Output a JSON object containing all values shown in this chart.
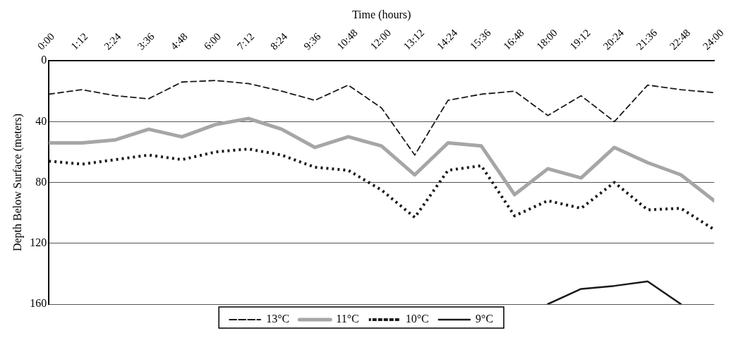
{
  "chart_data": {
    "type": "line",
    "xlabel": "Time (hours)",
    "ylabel": "Depth Below Surface (meters)",
    "x": [
      0,
      1.2,
      2.4,
      3.6,
      4.8,
      6,
      7.2,
      8.4,
      9.6,
      10.8,
      12,
      13.2,
      14.4,
      15.6,
      16.8,
      18,
      19.2,
      20.4,
      21.6,
      22.8,
      24
    ],
    "xlim": [
      0,
      24
    ],
    "xticks": [
      {
        "value": 0,
        "label": "0:00"
      },
      {
        "value": 1.2,
        "label": "1:12"
      },
      {
        "value": 2.4,
        "label": "2:24"
      },
      {
        "value": 3.6,
        "label": "3:36"
      },
      {
        "value": 4.8,
        "label": "4:48"
      },
      {
        "value": 6,
        "label": "6:00"
      },
      {
        "value": 7.2,
        "label": "7:12"
      },
      {
        "value": 8.4,
        "label": "8:24"
      },
      {
        "value": 9.6,
        "label": "9:36"
      },
      {
        "value": 10.8,
        "label": "10:48"
      },
      {
        "value": 12,
        "label": "12:00"
      },
      {
        "value": 13.2,
        "label": "13:12"
      },
      {
        "value": 14.4,
        "label": "14:24"
      },
      {
        "value": 15.6,
        "label": "15:36"
      },
      {
        "value": 16.8,
        "label": "16:48"
      },
      {
        "value": 18,
        "label": "18:00"
      },
      {
        "value": 19.2,
        "label": "19:12"
      },
      {
        "value": 20.4,
        "label": "20:24"
      },
      {
        "value": 21.6,
        "label": "21:36"
      },
      {
        "value": 22.8,
        "label": "22:48"
      },
      {
        "value": 24,
        "label": "24:00"
      }
    ],
    "ylim": [
      160,
      0
    ],
    "yticks": [
      0,
      40,
      80,
      120,
      160
    ],
    "grid": "y",
    "legend": "bottom",
    "marker": "none",
    "series": [
      {
        "name": "13°C",
        "color": "#1a1a1a",
        "line_style": "dashed",
        "values": [
          22,
          19,
          23,
          25,
          14,
          13,
          15,
          20,
          26,
          16,
          31,
          62,
          26,
          22,
          20,
          36,
          23,
          40,
          16,
          19,
          21
        ]
      },
      {
        "name": "11°C",
        "color": "#a6a6a6",
        "line_style": "solid",
        "values": [
          54,
          54,
          52,
          45,
          50,
          42,
          38,
          45,
          57,
          50,
          56,
          75,
          54,
          56,
          88,
          71,
          77,
          57,
          67,
          75,
          92
        ]
      },
      {
        "name": "10°C",
        "color": "#1a1a1a",
        "line_style": "dotted",
        "values": [
          66,
          68,
          65,
          62,
          65,
          60,
          58,
          62,
          70,
          72,
          85,
          103,
          72,
          69,
          102,
          92,
          97,
          80,
          98,
          97,
          111
        ]
      },
      {
        "name": "9°C",
        "color": "#1a1a1a",
        "line_style": "solid",
        "values": [
          null,
          null,
          null,
          null,
          null,
          null,
          null,
          null,
          null,
          null,
          null,
          null,
          null,
          null,
          null,
          160,
          150,
          148,
          145,
          160,
          null
        ]
      }
    ]
  }
}
